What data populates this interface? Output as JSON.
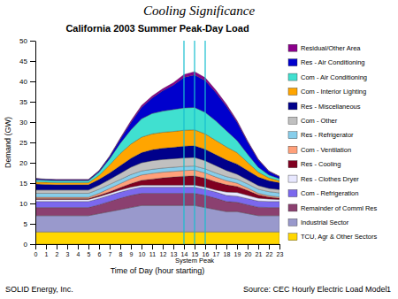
{
  "chart_data": {
    "type": "area",
    "stacked": true,
    "title": "California 2003 Summer Peak-Day Load",
    "subtitle": "Cooling Significance",
    "x_label": "Time of Day (hour starting)",
    "y_label": "Demand (GW)",
    "x": [
      0,
      1,
      2,
      3,
      4,
      5,
      6,
      7,
      8,
      9,
      10,
      11,
      12,
      13,
      14,
      15,
      16,
      17,
      18,
      19,
      20,
      21,
      22,
      23
    ],
    "xlim": [
      0,
      23
    ],
    "xticks": [
      0,
      1,
      2,
      3,
      4,
      5,
      6,
      7,
      8,
      9,
      10,
      11,
      12,
      13,
      14,
      15,
      16,
      17,
      18,
      19,
      20,
      21,
      22,
      23
    ],
    "ylim": [
      0,
      50
    ],
    "yticks": [
      0,
      5,
      10,
      15,
      20,
      25,
      30,
      35,
      40,
      45,
      50
    ],
    "grid": false,
    "legend": "right",
    "vlines": [
      14,
      15,
      16
    ],
    "annotations": [
      {
        "text": "System Peak",
        "x": 15
      },
      {
        "text": "SOLID Energy, Inc."
      },
      {
        "text": "Source:  CEC Hourly Electric Load Model"
      },
      {
        "text": "1"
      }
    ],
    "series": [
      {
        "name": "TCU, Agr & Other Sectors",
        "color": "#FFD700",
        "values": [
          3,
          3,
          3,
          3,
          3,
          3,
          3,
          3,
          3,
          3,
          3,
          3,
          3,
          3,
          3,
          3,
          3,
          3,
          3,
          3,
          3,
          3,
          3,
          3
        ]
      },
      {
        "name": "Industrial Sector",
        "color": "#9999CC",
        "values": [
          4,
          4,
          4,
          4,
          4,
          4,
          4.5,
          5,
          5.5,
          6,
          6.5,
          6.5,
          6.5,
          6.5,
          6.5,
          6.5,
          6,
          5.5,
          5,
          5,
          4.5,
          4,
          4,
          4
        ]
      },
      {
        "name": "Remainder of Comml Res",
        "color": "#8B4070",
        "values": [
          2,
          2,
          2,
          2,
          2,
          2,
          2.2,
          2.5,
          2.8,
          3,
          3,
          3,
          3,
          3,
          3,
          3,
          3,
          2.8,
          2.5,
          2.3,
          2.2,
          2.1,
          2,
          2
        ]
      },
      {
        "name": "Com - Refrigeration",
        "color": "#7B68EE",
        "values": [
          1.5,
          1.5,
          1.5,
          1.5,
          1.5,
          1.5,
          1.5,
          1.5,
          1.5,
          1.5,
          1.5,
          1.5,
          1.5,
          1.5,
          1.5,
          1.5,
          1.5,
          1.5,
          1.5,
          1.5,
          1.5,
          1.5,
          1.5,
          1.5
        ]
      },
      {
        "name": "Res - Clothes Dryer",
        "color": "#E8E8FF",
        "values": [
          0.5,
          0.5,
          0.5,
          0.5,
          0.5,
          0.5,
          0.5,
          0.5,
          0.5,
          0.5,
          0.5,
          0.5,
          0.5,
          0.5,
          0.5,
          0.5,
          0.5,
          0.5,
          0.8,
          0.9,
          0.8,
          0.7,
          0.6,
          0.5
        ]
      },
      {
        "name": "Res - Cooling",
        "color": "#800020",
        "values": [
          0.2,
          0.2,
          0.2,
          0.2,
          0.2,
          0.2,
          0.3,
          0.4,
          0.6,
          0.9,
          1.2,
          1.5,
          1.8,
          2.0,
          2.2,
          2.3,
          2.2,
          2.0,
          1.8,
          1.5,
          1.2,
          0.8,
          0.5,
          0.3
        ]
      },
      {
        "name": "Com - Ventilation",
        "color": "#FFA07A",
        "values": [
          0.3,
          0.3,
          0.3,
          0.3,
          0.3,
          0.3,
          0.5,
          0.8,
          1.0,
          1.2,
          1.3,
          1.4,
          1.4,
          1.4,
          1.4,
          1.4,
          1.3,
          1.2,
          1.0,
          0.8,
          0.6,
          0.4,
          0.3,
          0.3
        ]
      },
      {
        "name": "Res - Refrigerator",
        "color": "#87CEEB",
        "values": [
          1.0,
          1.0,
          1.0,
          1.0,
          1.0,
          1.0,
          1.0,
          1.0,
          1.0,
          1.0,
          1.0,
          1.0,
          1.0,
          1.0,
          1.0,
          1.0,
          1.0,
          1.0,
          1.0,
          1.0,
          1.0,
          1.0,
          1.0,
          1.0
        ]
      },
      {
        "name": "Com - Other",
        "color": "#C0C0C0",
        "values": [
          0.8,
          0.8,
          0.8,
          0.8,
          0.8,
          0.8,
          1.0,
          1.2,
          1.5,
          1.8,
          2.0,
          2.1,
          2.1,
          2.1,
          2.1,
          2.1,
          2.0,
          1.8,
          1.5,
          1.2,
          1.0,
          0.9,
          0.8,
          0.8
        ]
      },
      {
        "name": "Res - Miscellaneous",
        "color": "#00008B",
        "values": [
          1.5,
          1.4,
          1.3,
          1.3,
          1.3,
          1.3,
          1.4,
          1.6,
          1.9,
          2.2,
          2.5,
          2.7,
          2.8,
          2.8,
          2.9,
          2.9,
          2.8,
          2.7,
          2.6,
          2.5,
          2.3,
          2.1,
          1.9,
          1.7
        ]
      },
      {
        "name": "Com - Interior Lighting",
        "color": "#FFA500",
        "values": [
          0.5,
          0.5,
          0.5,
          0.5,
          0.5,
          0.5,
          1.0,
          2.0,
          3.0,
          3.5,
          3.8,
          3.9,
          3.9,
          3.9,
          3.9,
          3.9,
          3.8,
          3.5,
          3.2,
          2.8,
          2.0,
          1.2,
          0.7,
          0.5
        ]
      },
      {
        "name": "Com - Air Conditioning",
        "color": "#40E0D0",
        "values": [
          0.5,
          0.5,
          0.5,
          0.5,
          0.5,
          0.5,
          0.8,
          1.5,
          2.5,
          3.5,
          4.5,
          5.0,
          5.2,
          5.4,
          5.5,
          5.5,
          5.3,
          4.8,
          4.0,
          3.0,
          2.0,
          1.2,
          0.7,
          0.5
        ]
      },
      {
        "name": "Res - Air Conditioning",
        "color": "#0000CD",
        "values": [
          0.3,
          0.2,
          0.2,
          0.2,
          0.2,
          0.2,
          0.3,
          0.5,
          1.0,
          1.8,
          2.8,
          3.8,
          5.0,
          6.0,
          7.5,
          8.0,
          7.8,
          7.0,
          6.0,
          4.5,
          3.0,
          1.8,
          0.9,
          0.5
        ]
      },
      {
        "name": "Residual/Other Area",
        "color": "#8B008B",
        "values": [
          0.1,
          0.1,
          0.1,
          0.1,
          0.1,
          0.1,
          0.1,
          0.2,
          0.3,
          0.4,
          0.5,
          0.5,
          0.5,
          0.6,
          0.7,
          0.8,
          0.7,
          0.6,
          0.5,
          0.4,
          0.3,
          0.2,
          0.1,
          0.1
        ]
      }
    ]
  }
}
